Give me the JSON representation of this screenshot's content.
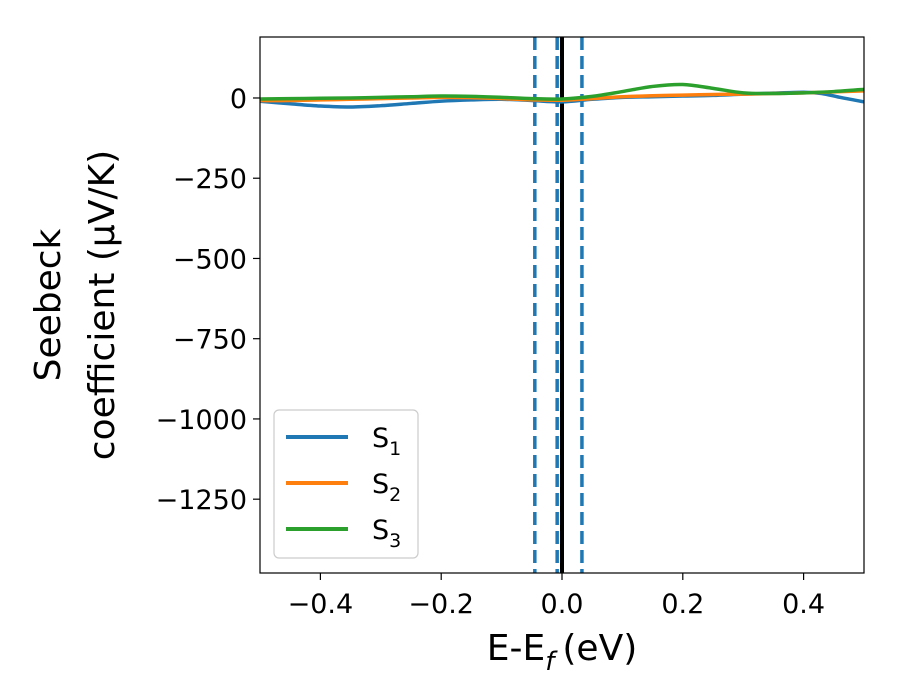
{
  "chart_data": {
    "type": "line",
    "title": "",
    "xlabel": "E-E",
    "xlabel_subscript": "f",
    "xlabel_unit": "(eV)",
    "ylabel_line1": "Seebeck",
    "ylabel_line2": "coefficient  (μV/K)",
    "xlim": [
      -0.5,
      0.5
    ],
    "ylim": [
      -1480,
      190
    ],
    "xticks": [
      -0.4,
      -0.2,
      0.0,
      0.2,
      0.4
    ],
    "xtick_labels": [
      "−0.4",
      "−0.2",
      "0.0",
      "0.2",
      "0.4"
    ],
    "yticks": [
      0,
      -250,
      -500,
      -750,
      -1000,
      -1250
    ],
    "ytick_labels": [
      "0",
      "−250",
      "−500",
      "−750",
      "−1000",
      "−1250"
    ],
    "grid": false,
    "legend_position": "lower-left",
    "vertical_lines": [
      {
        "x": -0.045,
        "style": "dashed",
        "color": "#1f77b4"
      },
      {
        "x": -0.008,
        "style": "dashed",
        "color": "#1f77b4"
      },
      {
        "x": 0.033,
        "style": "dashed",
        "color": "#1f77b4"
      },
      {
        "x": 0.0,
        "style": "solid",
        "color": "#000000"
      }
    ],
    "series": [
      {
        "name": "S",
        "subscript": "1",
        "color": "#1f77b4",
        "x": [
          -0.5,
          -0.45,
          -0.4,
          -0.35,
          -0.3,
          -0.25,
          -0.2,
          -0.15,
          -0.1,
          -0.05,
          0.0,
          0.05,
          0.1,
          0.15,
          0.2,
          0.25,
          0.3,
          0.35,
          0.4,
          0.43,
          0.46,
          0.5
        ],
        "values": [
          -10,
          -18,
          -25,
          -28,
          -24,
          -17,
          -10,
          -6,
          -4,
          -8,
          -12,
          -4,
          2,
          4,
          6,
          8,
          12,
          15,
          18,
          14,
          2,
          -12
        ]
      },
      {
        "name": "S",
        "subscript": "2",
        "color": "#ff7f0e",
        "x": [
          -0.5,
          -0.45,
          -0.4,
          -0.35,
          -0.3,
          -0.25,
          -0.2,
          -0.15,
          -0.1,
          -0.05,
          0.0,
          0.05,
          0.1,
          0.15,
          0.2,
          0.25,
          0.3,
          0.35,
          0.4,
          0.45,
          0.5
        ],
        "values": [
          -8,
          -8,
          -6,
          -4,
          -2,
          0,
          2,
          1,
          -2,
          -6,
          -7,
          -2,
          4,
          7,
          9,
          11,
          12,
          14,
          16,
          19,
          22
        ]
      },
      {
        "name": "S",
        "subscript": "3",
        "color": "#2ca02c",
        "x": [
          -0.5,
          -0.45,
          -0.4,
          -0.35,
          -0.3,
          -0.25,
          -0.2,
          -0.15,
          -0.1,
          -0.05,
          0.0,
          0.05,
          0.1,
          0.15,
          0.2,
          0.25,
          0.3,
          0.35,
          0.4,
          0.45,
          0.5
        ],
        "values": [
          -3,
          -2,
          -1,
          0,
          2,
          4,
          6,
          5,
          2,
          -2,
          -3,
          5,
          20,
          36,
          42,
          30,
          16,
          14,
          16,
          20,
          27
        ]
      }
    ]
  }
}
